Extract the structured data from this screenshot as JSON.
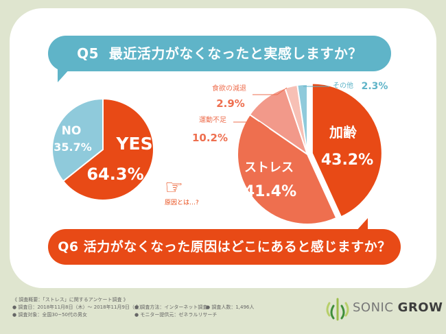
{
  "q5": {
    "label": "Q5",
    "text": "最近活力がなくなったと実感しますか？"
  },
  "q6": {
    "label": "Q6",
    "text": "活力がなくなった原因はどこにあると感じますか？"
  },
  "cause_prompt": "原因とは…?",
  "footer": {
    "heading": "《 調査概要：「ストレス」に関するアンケート調査 》",
    "date": "● 調査日：2018年11月8日（木）～ 2018年11月9日（金）",
    "method": "● 調査方法：インターネット調査",
    "count": "● 調査人数：1,496人",
    "target": "● 調査対象：全国30~50代の男女",
    "provider": "● モニター提供元：ゼネラルリサーチ"
  },
  "logo": {
    "brand_light": "SONIC ",
    "brand_bold": "GROW"
  },
  "colors": {
    "teal": "#5fb4c8",
    "orange": "#e84a16",
    "salmon": "#ee6f4f",
    "pink": "#f2998a",
    "light_pink": "#f7c0b5",
    "light_teal": "#8fcadb"
  },
  "chart_data": [
    {
      "type": "pie",
      "categories": [
        "YES",
        "NO"
      ],
      "values": [
        64.3,
        35.7
      ],
      "value_labels": [
        "64.3%",
        "35.7%"
      ],
      "colors": [
        "#e84a16",
        "#8fcadb"
      ]
    },
    {
      "type": "pie",
      "categories": [
        "加齢",
        "ストレス",
        "運動不足",
        "食欲の減退",
        "その他"
      ],
      "values": [
        43.2,
        41.4,
        10.2,
        2.9,
        2.3
      ],
      "value_labels": [
        "43.2%",
        "41.4%",
        "10.2%",
        "2.9%",
        "2.3%"
      ],
      "colors": [
        "#e84a16",
        "#ee6f4f",
        "#f2998a",
        "#f7c0b5",
        "#8fcadb"
      ]
    }
  ]
}
